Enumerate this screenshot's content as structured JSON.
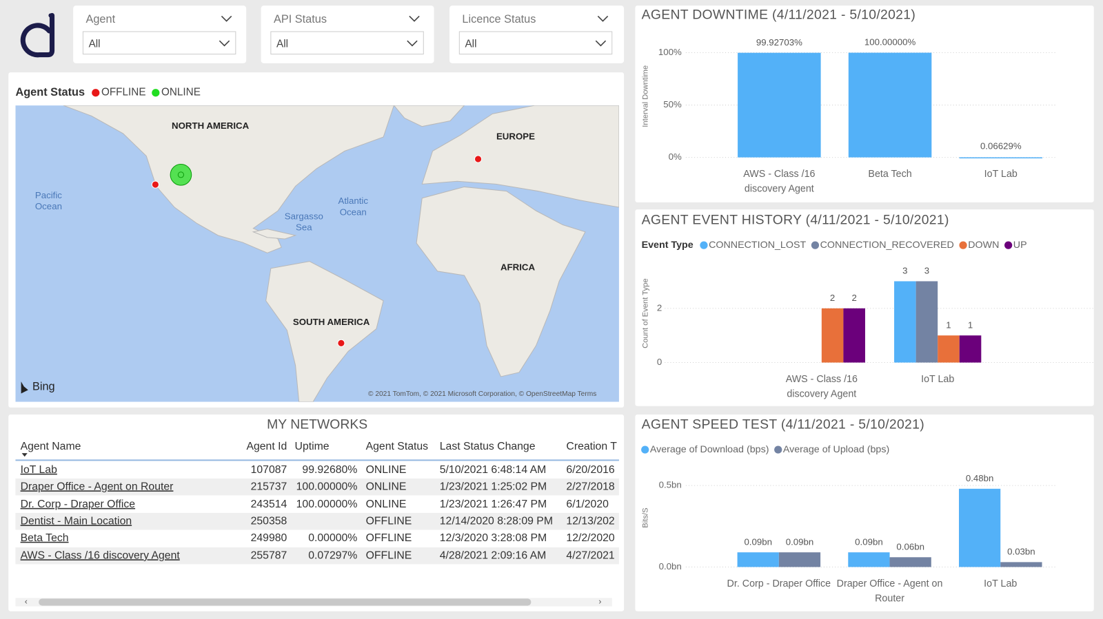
{
  "filters": [
    {
      "label": "Agent",
      "value": "All"
    },
    {
      "label": "API Status",
      "value": "All"
    },
    {
      "label": "Licence Status",
      "value": "All"
    }
  ],
  "map": {
    "title": "Agent Status",
    "legend": [
      {
        "name": "OFFLINE",
        "color": "#e81818"
      },
      {
        "name": "ONLINE",
        "color": "#22dd22"
      }
    ],
    "continents": [
      "NORTH AMERICA",
      "EUROPE",
      "AFRICA",
      "SOUTH AMERICA"
    ],
    "oceans": [
      "Pacific Ocean",
      "Atlantic Ocean",
      "Sargasso Sea"
    ],
    "provider": "Bing",
    "attribution": "© 2021 TomTom, © 2021 Microsoft Corporation, © OpenStreetMap  Terms",
    "points": [
      {
        "status": "OFFLINE",
        "lon": -122.3,
        "lat": 37.5,
        "count": 1
      },
      {
        "status": "ONLINE",
        "lon": -111.9,
        "lat": 40.6,
        "count": 3
      },
      {
        "status": "OFFLINE",
        "lon": 9.2,
        "lat": 45.3,
        "count": 1
      },
      {
        "status": "OFFLINE",
        "lon": -46.6,
        "lat": -23.5,
        "count": 1
      }
    ]
  },
  "table": {
    "title": "MY NETWORKS",
    "columns": [
      "Agent Name",
      "Agent Id",
      "Uptime",
      "Agent Status",
      "Last Status Change",
      "Creation T"
    ],
    "rows": [
      [
        "IoT Lab",
        107087,
        "99.92680%",
        "ONLINE",
        "5/10/2021 6:48:14 AM",
        "6/20/2016"
      ],
      [
        "Draper Office - Agent on Router",
        215737,
        "100.00000%",
        "ONLINE",
        "1/23/2021 1:25:02 PM",
        "2/27/2018"
      ],
      [
        "Dr. Corp - Draper Office",
        243514,
        "100.00000%",
        "ONLINE",
        "1/23/2021 1:26:47 PM",
        "6/1/2020"
      ],
      [
        "Dentist - Main Location",
        250358,
        null,
        "OFFLINE",
        "12/14/2020 8:28:09 PM",
        "12/13/202"
      ],
      [
        "Beta Tech",
        249980,
        "0.00000%",
        "OFFLINE",
        "12/3/2020 3:28:08 PM",
        "12/2/2020"
      ],
      [
        "AWS - Class /16 discovery Agent",
        255787,
        "0.07297%",
        "OFFLINE",
        "4/28/2021 2:09:16 AM",
        "4/27/2021"
      ]
    ]
  },
  "chart_data": [
    {
      "type": "bar",
      "title": "AGENT DOWNTIME (4/11/2021 - 5/10/2021)",
      "y_label": "Interval Downtime",
      "categories": [
        "AWS - Class /16 discovery Agent",
        "Beta Tech",
        "IoT Lab"
      ],
      "values": [
        99.92703,
        100,
        0.06629
      ],
      "value_labels": [
        "99.92703%",
        "100.00000%",
        "0.06629%"
      ],
      "color": "#53b1f8",
      "ylim": [
        0,
        100
      ],
      "yticks": [
        {
          "value": 0,
          "label": "0%"
        },
        {
          "value": 50,
          "label": "50%"
        },
        {
          "value": 100,
          "label": "100%"
        }
      ],
      "grid": true
    },
    {
      "type": "grouped_bar",
      "title": "AGENT EVENT HISTORY (4/11/2021 - 5/10/2021)",
      "legend_title": "Event Type",
      "y_label": "Count of Event Type",
      "categories": [
        "AWS - Class /16 discovery Agent",
        "IoT Lab"
      ],
      "series": [
        {
          "name": "CONNECTION_LOST",
          "color": "#53b1f8",
          "values": [
            null,
            3
          ]
        },
        {
          "name": "CONNECTION_RECOVERED",
          "color": "#7383a3",
          "values": [
            null,
            3
          ]
        },
        {
          "name": "DOWN",
          "color": "#e8703a",
          "values": [
            2,
            1
          ]
        },
        {
          "name": "UP",
          "color": "#6b007b",
          "values": [
            2,
            1
          ]
        }
      ],
      "ylim": [
        0,
        3.5
      ],
      "yticks": [
        0,
        2
      ],
      "grid": true
    },
    {
      "type": "grouped_bar",
      "title": "AGENT SPEED TEST (4/11/2021 - 5/10/2021)",
      "y_label": "Bits/S",
      "categories": [
        "Dr. Corp - Draper Office",
        "Draper Office - Agent on Router",
        "IoT Lab"
      ],
      "series": [
        {
          "name": "Average of Download (bps)",
          "color": "#53b1f8",
          "values": [
            0.09,
            0.09,
            0.48
          ],
          "value_labels": [
            "0.09bn",
            "0.09bn",
            "0.48bn"
          ]
        },
        {
          "name": "Average of Upload (bps)",
          "color": "#7383a3",
          "values": [
            0.09,
            0.06,
            0.03
          ],
          "value_labels": [
            "0.09bn",
            "0.06bn",
            "0.03bn"
          ]
        }
      ],
      "ylim": [
        0,
        0.55
      ],
      "yticks": [
        {
          "value": 0,
          "label": "0.0bn"
        },
        {
          "value": 0.5,
          "label": "0.5bn"
        }
      ],
      "grid": true
    }
  ]
}
